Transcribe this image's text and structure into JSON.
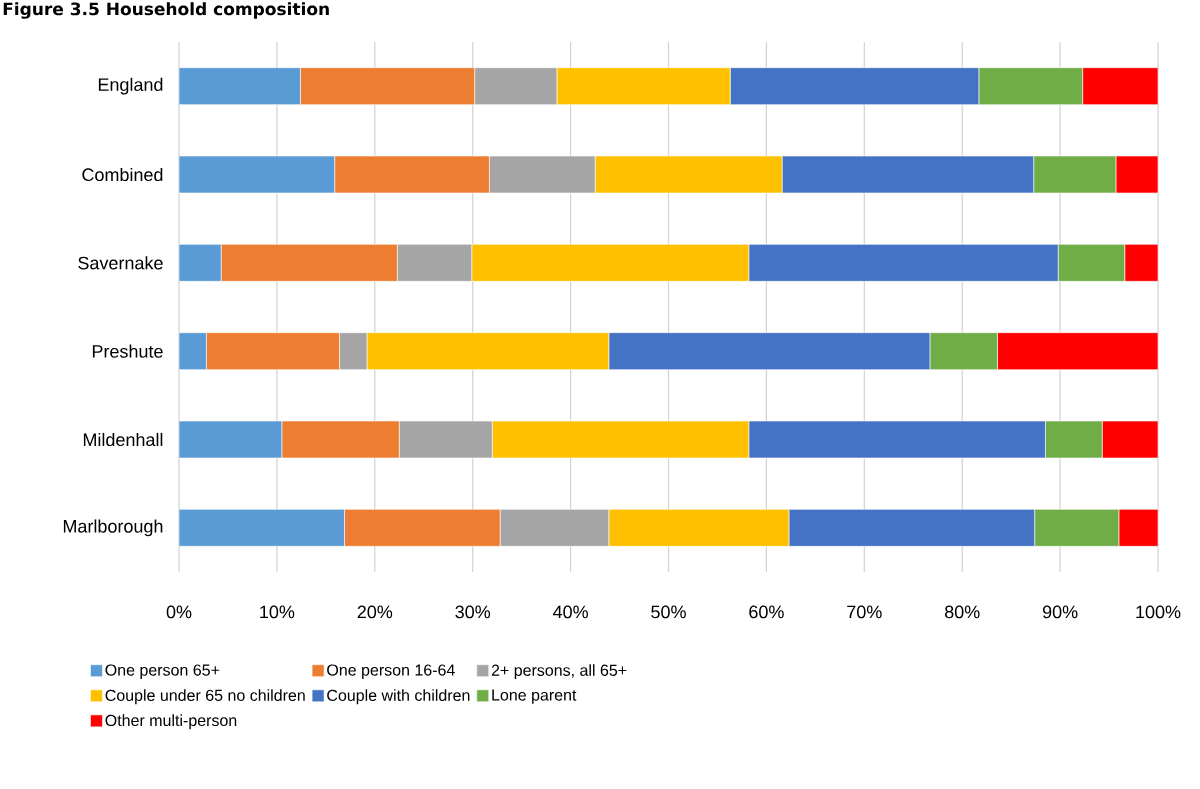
{
  "chart_data": {
    "type": "bar",
    "title": "Figure 3.5 Household composition",
    "orientation": "horizontal",
    "stacked": true,
    "grid": "x",
    "legend": "bottom",
    "categories": [
      "England",
      "Combined",
      "Savernake",
      "Preshute",
      "Mildenhall",
      "Marlborough"
    ],
    "xlim": [
      0,
      100
    ],
    "xticks": [
      {
        "value": 0,
        "label": "0%"
      },
      {
        "value": 10,
        "label": "10%"
      },
      {
        "value": 20,
        "label": "20%"
      },
      {
        "value": 30,
        "label": "30%"
      },
      {
        "value": 40,
        "label": "40%"
      },
      {
        "value": 50,
        "label": "50%"
      },
      {
        "value": 60,
        "label": "60%"
      },
      {
        "value": 70,
        "label": "70%"
      },
      {
        "value": 80,
        "label": "80%"
      },
      {
        "value": 90,
        "label": "90%"
      },
      {
        "value": 100,
        "label": "100%"
      }
    ],
    "series": [
      {
        "name": "One person 65+",
        "color": "#5b9bd5",
        "values": [
          12.4,
          15.9,
          4.3,
          2.8,
          10.5,
          16.9
        ]
      },
      {
        "name": "One person 16-64",
        "color": "#ed7d31",
        "values": [
          17.8,
          15.8,
          18.0,
          13.6,
          12.0,
          15.9
        ]
      },
      {
        "name": "2+ persons, all 65+",
        "color": "#a5a5a5",
        "values": [
          8.4,
          10.8,
          7.6,
          2.8,
          9.5,
          11.1
        ]
      },
      {
        "name": "Couple under 65 no children",
        "color": "#ffc000",
        "values": [
          17.7,
          19.1,
          28.3,
          24.7,
          26.2,
          18.4
        ]
      },
      {
        "name": "Couple with children",
        "color": "#4472c4",
        "values": [
          25.4,
          25.7,
          31.6,
          32.8,
          30.3,
          25.1
        ]
      },
      {
        "name": "Lone parent",
        "color": "#70ad47",
        "values": [
          10.6,
          8.4,
          6.8,
          6.9,
          5.8,
          8.6
        ]
      },
      {
        "name": "Other multi-person",
        "color": "#ff0000",
        "values": [
          7.7,
          4.3,
          3.4,
          16.4,
          5.7,
          4.0
        ]
      }
    ]
  }
}
